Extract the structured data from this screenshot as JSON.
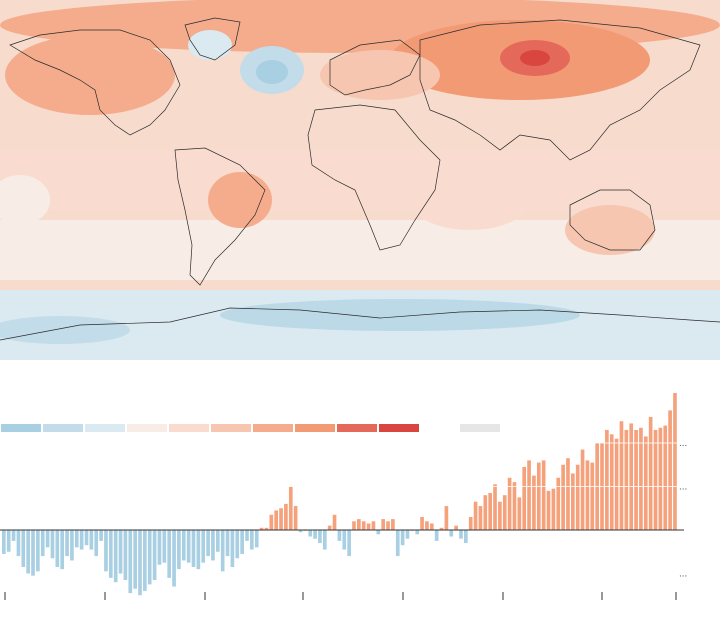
{
  "colors": {
    "scale": [
      "#a9cfe3",
      "#c2dce9",
      "#dbe9f0",
      "#f7ece6",
      "#f9dccf",
      "#f6c6b0",
      "#f4ac8c",
      "#f19a74",
      "#e5695a",
      "#d9463f"
    ],
    "no_data": "#e6e6e6",
    "warm_bar": "#f4a17c",
    "cool_bar": "#a9cfe3",
    "baseline": "#333333",
    "gridline": "#ffffff",
    "coastline": "#2a2a2a",
    "ice_cool": "#bcd9e8"
  },
  "legend": {
    "swatches": [
      "#a9cfe3",
      "#c2dce9",
      "#dbe9f0",
      "#f7ece6",
      "#f9dccf",
      "#f6c6b0",
      "#f4ac8c",
      "#f19a74",
      "#e5695a",
      "#d9463f"
    ],
    "no_data_swatch": "#e6e6e6"
  },
  "map": {
    "background_tint": "#f7dccd",
    "hotspots": [
      {
        "region": "siberia",
        "color": "#e5695a"
      },
      {
        "region": "north-america-west",
        "color": "#f4ac8c"
      },
      {
        "region": "north-atlantic",
        "color": "#a9cfe3"
      },
      {
        "region": "antarctica",
        "color": "#c2dce9"
      }
    ]
  },
  "chart_data": {
    "type": "bar",
    "y_tick_labels": [
      "...",
      "...",
      "..."
    ],
    "ylim": [
      -1.6,
      3.2
    ],
    "values": [
      -0.55,
      -0.5,
      -0.25,
      -0.6,
      -0.85,
      -1.0,
      -1.05,
      -0.95,
      -0.6,
      -0.4,
      -0.65,
      -0.85,
      -0.9,
      -0.6,
      -0.7,
      -0.4,
      -0.45,
      -0.35,
      -0.45,
      -0.6,
      -0.25,
      -0.95,
      -1.1,
      -1.2,
      -1.0,
      -1.15,
      -1.45,
      -1.35,
      -1.5,
      -1.4,
      -1.25,
      -1.15,
      -0.8,
      -0.75,
      -1.1,
      -1.3,
      -0.9,
      -0.7,
      -0.75,
      -0.85,
      -0.9,
      -0.75,
      -0.6,
      -0.7,
      -0.5,
      -0.95,
      -0.6,
      -0.85,
      -0.65,
      -0.55,
      -0.25,
      -0.45,
      -0.4,
      0.05,
      0.05,
      0.35,
      0.45,
      0.5,
      0.6,
      1.0,
      0.55,
      -0.05,
      0.0,
      -0.15,
      -0.2,
      -0.3,
      -0.45,
      0.1,
      0.35,
      -0.25,
      -0.45,
      -0.6,
      0.2,
      0.25,
      0.2,
      0.15,
      0.2,
      -0.1,
      0.25,
      0.2,
      0.25,
      -0.6,
      -0.35,
      -0.2,
      0.0,
      -0.1,
      0.3,
      0.2,
      0.15,
      -0.25,
      0.05,
      0.55,
      -0.15,
      0.1,
      -0.2,
      -0.3,
      0.3,
      0.65,
      0.55,
      0.8,
      0.85,
      1.05,
      0.65,
      0.8,
      1.2,
      1.1,
      0.75,
      1.45,
      1.6,
      1.25,
      1.55,
      1.6,
      0.9,
      0.95,
      1.2,
      1.5,
      1.65,
      1.3,
      1.5,
      1.85,
      1.6,
      1.55,
      2.0,
      2.0,
      2.3,
      2.2,
      2.1,
      2.5,
      2.3,
      2.45,
      2.3,
      2.35,
      2.15,
      2.6,
      2.3,
      2.35,
      2.4,
      2.75,
      3.15
    ]
  }
}
